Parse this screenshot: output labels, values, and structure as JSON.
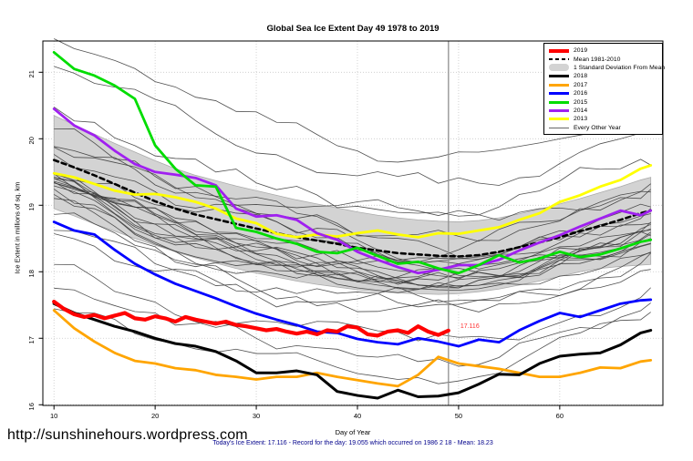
{
  "header": {
    "title": "Global Sea Ice Extent Day 49 1978 to 2019"
  },
  "footer": {
    "url": "http://sunshinehours.wordpress.com",
    "caption": "Today's Ice Extent: 17.116  - Record for the day: 19.055 which occurred on 1986 2 18  - Mean: 18.23"
  },
  "legend": {
    "items": [
      {
        "label": "2019",
        "swatch": "line",
        "color": "#FF0000",
        "thickness": 4
      },
      {
        "label": "Mean 1981-2010",
        "swatch": "dashed",
        "color": "#000000",
        "thickness": 2.5
      },
      {
        "label": "1 Standard Deviation From Mean",
        "swatch": "band",
        "color": "#D3D3D3",
        "thickness": 8
      },
      {
        "label": "2018",
        "swatch": "line",
        "color": "#000000",
        "thickness": 3
      },
      {
        "label": "2017",
        "swatch": "line",
        "color": "#FFA500",
        "thickness": 3
      },
      {
        "label": "2016",
        "swatch": "line",
        "color": "#0000FF",
        "thickness": 3
      },
      {
        "label": "2015",
        "swatch": "line",
        "color": "#00DD00",
        "thickness": 3
      },
      {
        "label": "2014",
        "swatch": "line",
        "color": "#A020F0",
        "thickness": 3
      },
      {
        "label": "2013",
        "swatch": "line",
        "color": "#FFFF00",
        "thickness": 3
      },
      {
        "label": "Every Other Year",
        "swatch": "thinline",
        "color": "#666666",
        "thickness": 1
      }
    ]
  },
  "chart_data": {
    "type": "line",
    "title": "Global Sea Ice Extent Day 49 1978 to 2019",
    "xlabel": "Day of Year",
    "ylabel": "Ice Extent in millions of sq. km",
    "xlim": [
      8.9,
      70.2
    ],
    "ylim": [
      15.99,
      21.47
    ],
    "x_ticks": [
      10,
      20,
      30,
      40,
      50,
      60
    ],
    "y_ticks": [
      16,
      17,
      18,
      19,
      20,
      21
    ],
    "grid": "dotted",
    "grid_color": "#c8c8c8",
    "vline": {
      "x": 49,
      "color": "#8f8f8f"
    },
    "annotation": {
      "text": "17.116",
      "day": 49,
      "value": 17.116,
      "color": "#FF3030"
    },
    "x": [
      10,
      12,
      14,
      16,
      18,
      20,
      22,
      24,
      26,
      28,
      30,
      32,
      34,
      36,
      38,
      40,
      42,
      44,
      46,
      48,
      50,
      52,
      54,
      56,
      58,
      60,
      62,
      64,
      66,
      68,
      69
    ],
    "band": {
      "name": "1 Standard Deviation From Mean",
      "color": "#D3D3D3",
      "edge_color": "#ababab",
      "top": [
        20.35,
        20.21,
        20.07,
        19.93,
        19.8,
        19.67,
        19.55,
        19.45,
        19.37,
        19.29,
        19.22,
        19.15,
        19.08,
        19.02,
        18.96,
        18.9,
        18.85,
        18.81,
        18.78,
        18.76,
        18.75,
        18.77,
        18.81,
        18.87,
        18.94,
        19.02,
        19.1,
        19.19,
        19.28,
        19.38,
        19.42
      ],
      "bottom": [
        18.95,
        18.84,
        18.72,
        18.61,
        18.5,
        18.4,
        18.3,
        18.21,
        18.13,
        18.05,
        17.98,
        17.92,
        17.86,
        17.81,
        17.77,
        17.73,
        17.7,
        17.68,
        17.67,
        17.66,
        17.67,
        17.7,
        17.74,
        17.8,
        17.86,
        17.93,
        18.0,
        18.05,
        18.08,
        18.1,
        18.11
      ]
    },
    "series": [
      {
        "name": "Mean 1981-2010",
        "color": "#000000",
        "width": 2.6,
        "dash": "5,4",
        "values": [
          19.68,
          19.57,
          19.45,
          19.32,
          19.19,
          19.06,
          18.95,
          18.86,
          18.79,
          18.72,
          18.65,
          18.58,
          18.52,
          18.47,
          18.42,
          18.36,
          18.32,
          18.28,
          18.26,
          18.24,
          18.23,
          18.25,
          18.3,
          18.37,
          18.44,
          18.52,
          18.61,
          18.69,
          18.78,
          18.88,
          18.92
        ]
      },
      {
        "name": "2013",
        "color": "#FFFF00",
        "width": 2.8,
        "values": [
          19.48,
          19.42,
          19.32,
          19.22,
          19.16,
          19.17,
          19.12,
          19.05,
          18.95,
          18.8,
          18.73,
          18.57,
          18.52,
          18.56,
          18.53,
          18.58,
          18.62,
          18.56,
          18.52,
          18.58,
          18.57,
          18.62,
          18.67,
          18.78,
          18.88,
          19.05,
          19.15,
          19.28,
          19.38,
          19.55,
          19.6
        ]
      },
      {
        "name": "2014",
        "color": "#A020F0",
        "width": 2.8,
        "values": [
          20.45,
          20.2,
          20.05,
          19.82,
          19.62,
          19.5,
          19.46,
          19.41,
          19.3,
          18.95,
          18.83,
          18.85,
          18.78,
          18.58,
          18.48,
          18.3,
          18.18,
          18.07,
          17.98,
          18.03,
          18.1,
          18.1,
          18.18,
          18.32,
          18.44,
          18.55,
          18.68,
          18.8,
          18.92,
          18.85,
          18.92
        ]
      },
      {
        "name": "2015",
        "color": "#00DD00",
        "width": 2.8,
        "values": [
          21.3,
          21.05,
          20.95,
          20.8,
          20.6,
          19.9,
          19.55,
          19.3,
          19.28,
          18.66,
          18.6,
          18.5,
          18.42,
          18.3,
          18.28,
          18.36,
          18.24,
          18.12,
          18.15,
          18.05,
          17.98,
          18.1,
          18.25,
          18.14,
          18.2,
          18.3,
          18.22,
          18.26,
          18.35,
          18.45,
          18.48
        ]
      },
      {
        "name": "2016",
        "color": "#0000FF",
        "width": 2.8,
        "values": [
          18.75,
          18.62,
          18.56,
          18.33,
          18.12,
          17.96,
          17.82,
          17.71,
          17.6,
          17.48,
          17.37,
          17.28,
          17.2,
          17.1,
          17.08,
          16.99,
          16.94,
          16.91,
          17.0,
          16.95,
          16.88,
          16.98,
          16.94,
          17.12,
          17.26,
          17.38,
          17.32,
          17.42,
          17.52,
          17.57,
          17.58
        ]
      },
      {
        "name": "2017",
        "color": "#FFA500",
        "width": 2.8,
        "values": [
          17.42,
          17.15,
          16.95,
          16.78,
          16.66,
          16.62,
          16.55,
          16.52,
          16.45,
          16.42,
          16.38,
          16.42,
          16.42,
          16.48,
          16.42,
          16.37,
          16.32,
          16.28,
          16.45,
          16.72,
          16.62,
          16.58,
          16.54,
          16.48,
          16.42,
          16.42,
          16.48,
          16.56,
          16.55,
          16.65,
          16.67
        ]
      },
      {
        "name": "2018",
        "color": "#000000",
        "width": 3,
        "values": [
          17.52,
          17.38,
          17.28,
          17.18,
          17.1,
          17.0,
          16.92,
          16.88,
          16.8,
          16.66,
          16.48,
          16.48,
          16.51,
          16.45,
          16.2,
          16.14,
          16.1,
          16.22,
          16.12,
          16.13,
          16.18,
          16.31,
          16.46,
          16.45,
          16.62,
          16.73,
          16.76,
          16.78,
          16.9,
          17.08,
          17.12
        ]
      },
      {
        "name": "2019",
        "color": "#FF0000",
        "width": 4.2,
        "x": [
          10,
          11,
          12,
          13,
          14,
          15,
          16,
          17,
          18,
          19,
          20,
          21,
          22,
          23,
          24,
          25,
          26,
          27,
          28,
          29,
          30,
          31,
          32,
          33,
          34,
          35,
          36,
          37,
          38,
          39,
          40,
          41,
          42,
          43,
          44,
          45,
          46,
          47,
          48,
          49
        ],
        "values": [
          17.55,
          17.44,
          17.36,
          17.32,
          17.35,
          17.3,
          17.34,
          17.38,
          17.3,
          17.28,
          17.33,
          17.3,
          17.25,
          17.32,
          17.28,
          17.25,
          17.22,
          17.25,
          17.2,
          17.18,
          17.15,
          17.12,
          17.14,
          17.1,
          17.07,
          17.1,
          17.06,
          17.12,
          17.1,
          17.18,
          17.16,
          17.06,
          17.04,
          17.1,
          17.12,
          17.08,
          17.18,
          17.1,
          17.05,
          17.116
        ]
      }
    ],
    "background_years": {
      "label": "Every Other Year",
      "count": 28,
      "color": "#3d3d3d",
      "width": 0.8,
      "seed": 11,
      "offset_range": [
        -1.6,
        1.2
      ],
      "spread_start": 1.42,
      "spread_end": 0.95,
      "noise": 0.13
    }
  }
}
